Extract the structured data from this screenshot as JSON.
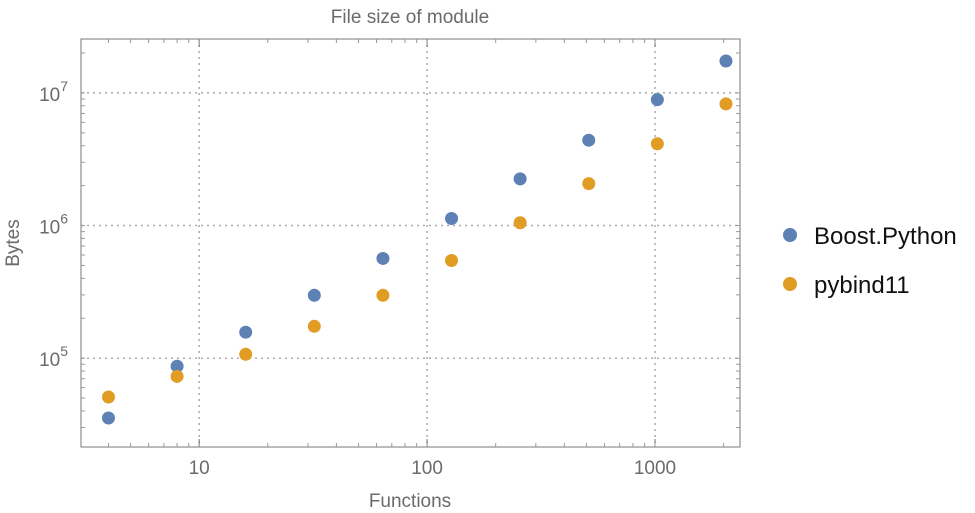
{
  "chart_data": {
    "type": "scatter",
    "title": "File size of module",
    "xlabel": "Functions",
    "ylabel": "Bytes",
    "xscale": "log",
    "yscale": "log",
    "xlim": [
      3.03,
      2360
    ],
    "ylim": [
      21400,
      25500000
    ],
    "grid": true,
    "legend_position": "right",
    "x_ticks": [
      {
        "value": 10,
        "label": "10"
      },
      {
        "value": 100,
        "label": "100"
      },
      {
        "value": 1000,
        "label": "1000"
      }
    ],
    "y_ticks": [
      {
        "value": 100000,
        "base": "10",
        "exp": "5"
      },
      {
        "value": 1000000,
        "base": "10",
        "exp": "6"
      },
      {
        "value": 10000000,
        "base": "10",
        "exp": "7"
      }
    ],
    "x": [
      4,
      8,
      16,
      32,
      64,
      128,
      256,
      512,
      1024,
      2048
    ],
    "series": [
      {
        "name": "Boost.Python",
        "color": "#5E81B5",
        "values": [
          35400,
          87000,
          157000,
          298000,
          565000,
          1130000,
          2250000,
          4400000,
          8900000,
          17400000
        ]
      },
      {
        "name": "pybind11",
        "color": "#E19C24",
        "values": [
          51000,
          73000,
          107000,
          174000,
          298000,
          545000,
          1050000,
          2070000,
          4140000,
          8260000
        ]
      }
    ]
  }
}
